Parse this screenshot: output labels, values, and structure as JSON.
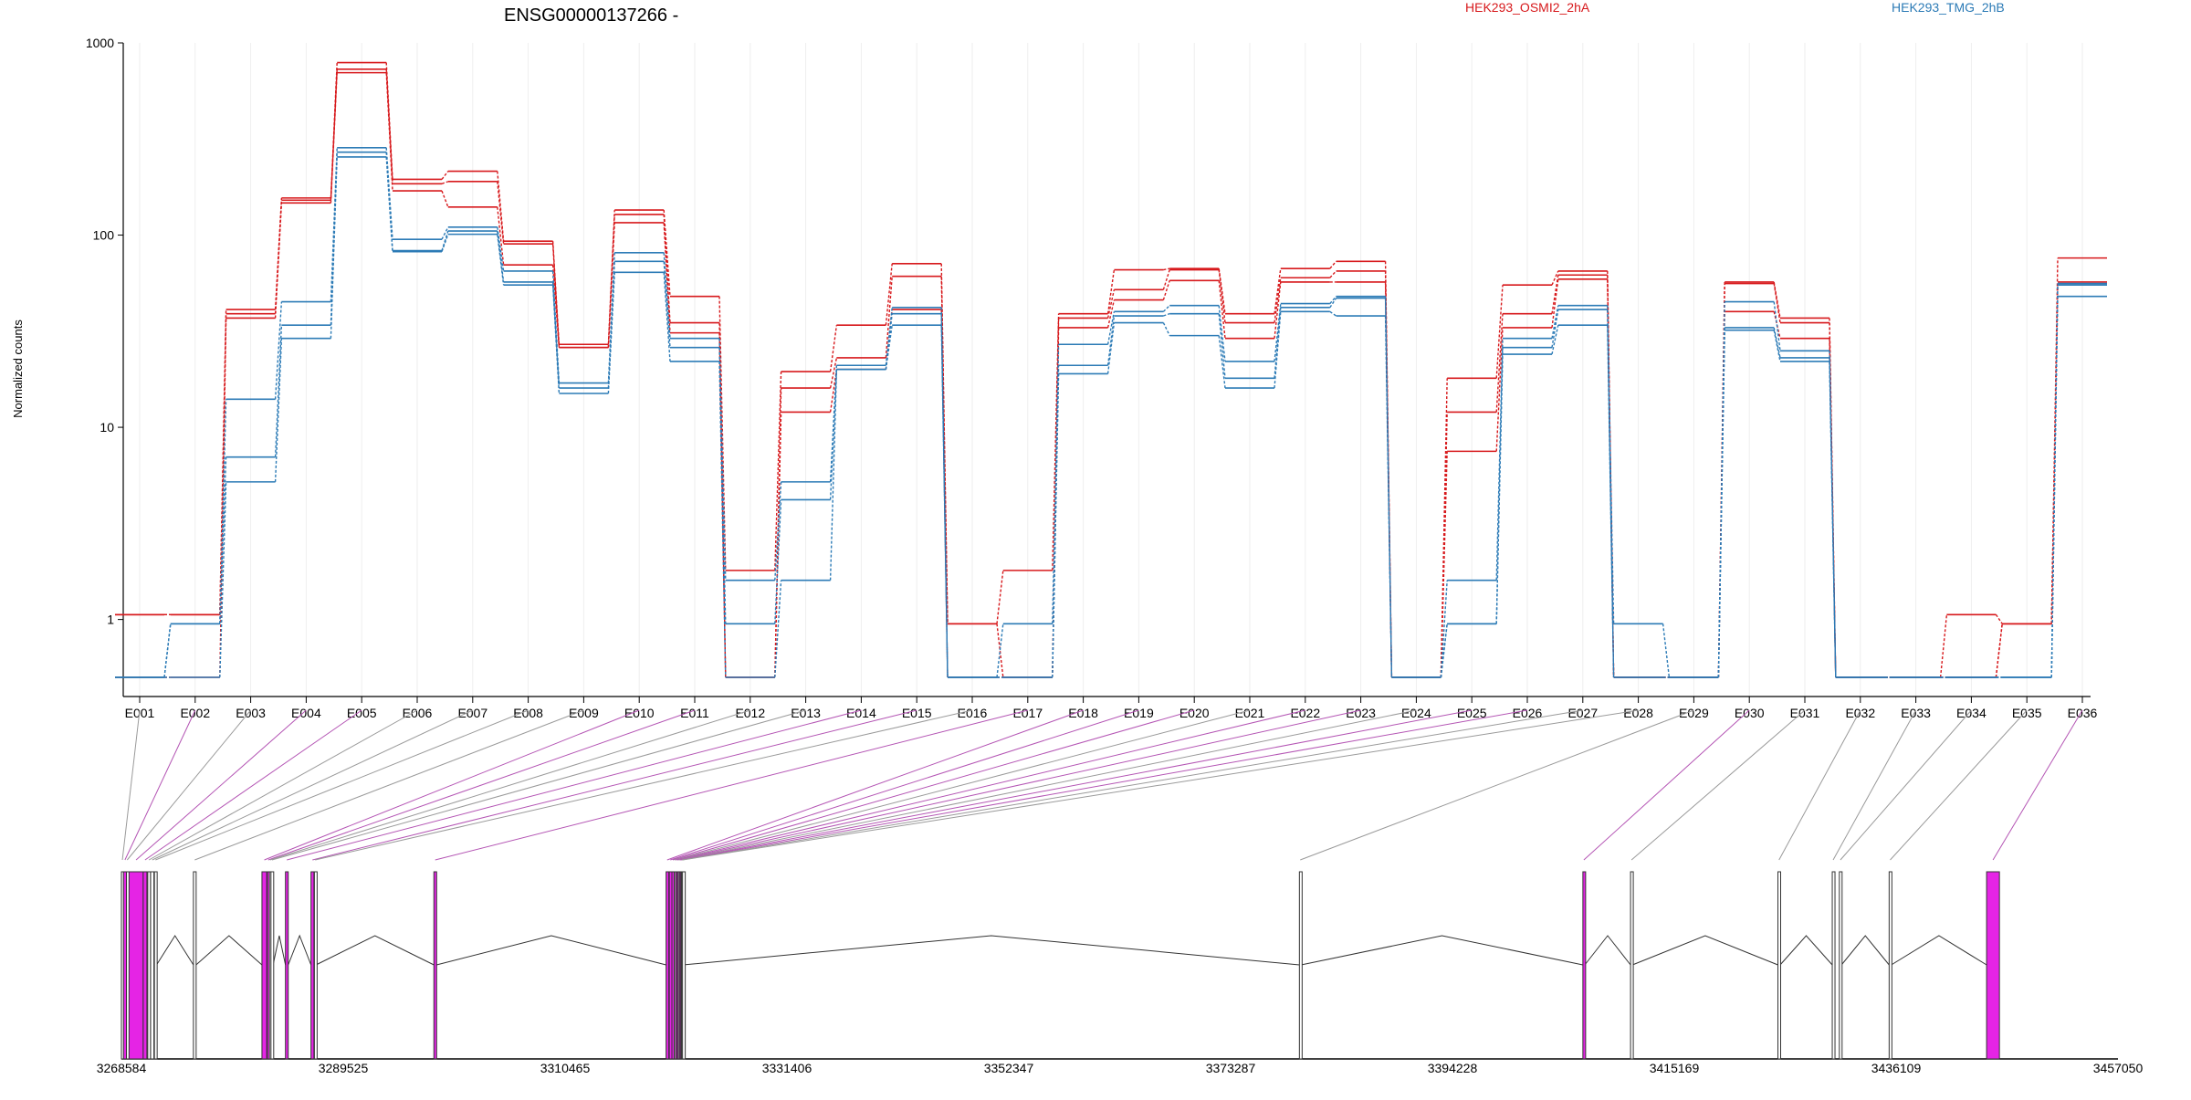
{
  "chart_data": {
    "type": "line",
    "title": "ENSG00000137266 -",
    "ylabel": "Normalized counts",
    "yscale": "log",
    "ylim": [
      0.5,
      1000
    ],
    "yticks": [
      1,
      10,
      100,
      1000
    ],
    "ytick_labels": [
      "1",
      "10",
      "100",
      "1000"
    ],
    "categories": [
      "E001",
      "E002",
      "E003",
      "E004",
      "E005",
      "E006",
      "E007",
      "E008",
      "E009",
      "E010",
      "E011",
      "E012",
      "E013",
      "E014",
      "E015",
      "E016",
      "E017",
      "E018",
      "E019",
      "E020",
      "E021",
      "E022",
      "E023",
      "E024",
      "E025",
      "E026",
      "E027",
      "E028",
      "E029",
      "E030",
      "E031",
      "E032",
      "E033",
      "E034",
      "E035",
      "E036"
    ],
    "legend": [
      "HEK293_OSMI2_2hA",
      "HEK293_TMG_2hB"
    ],
    "series": [
      {
        "name": "HEK293_OSMI2_2hA",
        "color": "#d7191c",
        "values": [
          1.06,
          1.06,
          41,
          156,
          790,
          195,
          215,
          93,
          27,
          135,
          48,
          1.8,
          19.5,
          34,
          71,
          0.95,
          1.8,
          39,
          66,
          67,
          39,
          67,
          73,
          0.5,
          18,
          55,
          65,
          0.5,
          0.5,
          57,
          37,
          0.5,
          0.5,
          1.06,
          0.95,
          76
        ]
      },
      {
        "color": "#d7191c",
        "values": [
          1.06,
          1.06,
          39,
          152,
          730,
          185,
          190,
          90,
          26,
          128,
          35,
          0.5,
          16,
          23,
          61,
          0.95,
          0.5,
          37,
          52,
          66,
          35,
          60,
          65,
          0.5,
          12,
          39,
          62,
          0.5,
          0.5,
          56,
          35,
          0.5,
          0.5,
          0.5,
          0.95,
          57
        ]
      },
      {
        "color": "#d7191c",
        "values": [
          0.5,
          0.5,
          37,
          147,
          700,
          170,
          140,
          70,
          26,
          116,
          31,
          0.5,
          12,
          20,
          41,
          0.5,
          0.5,
          33,
          46,
          58,
          29,
          57,
          57,
          0.5,
          7.5,
          33,
          59,
          0.5,
          0.5,
          40,
          29,
          0.5,
          0.5,
          0.5,
          0.95,
          55
        ]
      },
      {
        "name": "HEK293_TMG_2hB",
        "color": "#2c7bb6",
        "values": [
          0.5,
          0.95,
          14,
          45,
          285,
          95,
          110,
          65,
          17,
          81,
          29,
          1.6,
          5.2,
          21,
          42,
          0.5,
          0.95,
          27,
          40,
          43,
          22,
          44,
          48,
          0.5,
          1.6,
          29,
          43,
          0.95,
          0.5,
          45,
          25,
          0.5,
          0.5,
          0.5,
          0.5,
          56
        ]
      },
      {
        "color": "#2c7bb6",
        "values": [
          0.5,
          0.95,
          7,
          34,
          270,
          83,
          105,
          57,
          16,
          73,
          26,
          0.95,
          4.2,
          20,
          39,
          0.5,
          0.5,
          21,
          38,
          39,
          18,
          42,
          47,
          0.5,
          0.95,
          26,
          41,
          0.5,
          0.5,
          33,
          23,
          0.5,
          0.5,
          0.5,
          0.5,
          55
        ]
      },
      {
        "color": "#2c7bb6",
        "values": [
          0.5,
          0.5,
          5.2,
          29,
          255,
          82,
          101,
          55,
          15,
          64,
          22,
          0.5,
          1.6,
          20,
          34,
          0.5,
          0.5,
          19,
          35,
          30,
          16,
          40,
          38,
          0.5,
          0.95,
          24,
          34,
          0.5,
          0.5,
          32,
          22,
          0.5,
          0.5,
          0.5,
          0.5,
          48
        ]
      }
    ],
    "exon_ticks": [
      {
        "id": "E001",
        "start": 3268584,
        "end": 3268763,
        "purple": false
      },
      {
        "id": "E002",
        "start": 3268780,
        "end": 3269060,
        "purple": true
      },
      {
        "id": "E003",
        "start": 3269060,
        "end": 3269200,
        "purple": false
      },
      {
        "id": "E004",
        "start": 3269300,
        "end": 3270640,
        "purple": true
      },
      {
        "id": "E005",
        "start": 3270640,
        "end": 3270990,
        "purple": true
      },
      {
        "id": "E006",
        "start": 3271070,
        "end": 3271300,
        "purple": false
      },
      {
        "id": "E007",
        "start": 3271340,
        "end": 3271650,
        "purple": false
      },
      {
        "id": "E008",
        "start": 3271700,
        "end": 3271900,
        "purple": false
      },
      {
        "id": "E009",
        "start": 3275380,
        "end": 3275630,
        "purple": false
      },
      {
        "id": "E010",
        "start": 3281850,
        "end": 3282300,
        "purple": true
      },
      {
        "id": "E011",
        "start": 3282360,
        "end": 3282520,
        "purple": true
      },
      {
        "id": "E012",
        "start": 3282560,
        "end": 3282680,
        "purple": false
      },
      {
        "id": "E013",
        "start": 3282700,
        "end": 3282900,
        "purple": false
      },
      {
        "id": "E014",
        "start": 3284070,
        "end": 3284330,
        "purple": true
      },
      {
        "id": "E015",
        "start": 3286480,
        "end": 3286760,
        "purple": true
      },
      {
        "id": "E016",
        "start": 3286800,
        "end": 3286950,
        "purple": false
      },
      {
        "id": "E017",
        "start": 3298080,
        "end": 3298330,
        "purple": true
      },
      {
        "id": "E018",
        "start": 3320000,
        "end": 3320200,
        "purple": true
      },
      {
        "id": "E019",
        "start": 3320300,
        "end": 3320500,
        "purple": true
      },
      {
        "id": "E020",
        "start": 3320550,
        "end": 3320720,
        "purple": true
      },
      {
        "id": "E021",
        "start": 3320760,
        "end": 3320860,
        "purple": false
      },
      {
        "id": "E022",
        "start": 3320880,
        "end": 3321000,
        "purple": true
      },
      {
        "id": "E023",
        "start": 3321020,
        "end": 3321120,
        "purple": true
      },
      {
        "id": "E024",
        "start": 3321140,
        "end": 3321250,
        "purple": false
      },
      {
        "id": "E025",
        "start": 3321250,
        "end": 3321350,
        "purple": true
      },
      {
        "id": "E026",
        "start": 3321350,
        "end": 3321430,
        "purple": true
      },
      {
        "id": "E027",
        "start": 3321450,
        "end": 3321530,
        "purple": false
      },
      {
        "id": "E028",
        "start": 3321550,
        "end": 3321600,
        "purple": false
      },
      {
        "id": "E029",
        "start": 3379780,
        "end": 3379940,
        "purple": false
      },
      {
        "id": "E030",
        "start": 3406540,
        "end": 3406720,
        "purple": true
      },
      {
        "id": "E031",
        "start": 3411040,
        "end": 3411220,
        "purple": false
      },
      {
        "id": "E032",
        "start": 3424950,
        "end": 3425160,
        "purple": false
      },
      {
        "id": "E033",
        "start": 3430080,
        "end": 3430250,
        "purple": false
      },
      {
        "id": "E034",
        "start": 3430750,
        "end": 3430950,
        "purple": false
      },
      {
        "id": "E035",
        "start": 3435450,
        "end": 3435650,
        "purple": false
      },
      {
        "id": "E036",
        "start": 3444650,
        "end": 3445860,
        "purple": true
      }
    ],
    "genome_ticks": [
      "3268584",
      "3289525",
      "3310465",
      "3331406",
      "3352347",
      "3373287",
      "3394228",
      "3415169",
      "3436109",
      "3457050"
    ],
    "genome_range": [
      3268584,
      3457050
    ]
  }
}
